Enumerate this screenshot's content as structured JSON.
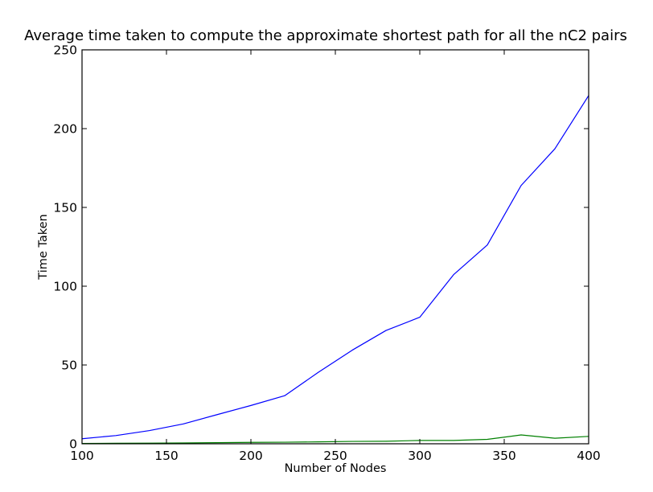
{
  "chart_data": {
    "type": "line",
    "title": "Average time taken to compute the approximate shortest path for all the nC2 pairs",
    "xlabel": "Number of Nodes",
    "ylabel": "Time Taken",
    "xlim": [
      100,
      400
    ],
    "ylim": [
      0,
      250
    ],
    "xticks": [
      "100",
      "150",
      "200",
      "250",
      "300",
      "350",
      "400"
    ],
    "yticks": [
      "0",
      "50",
      "100",
      "150",
      "200",
      "250"
    ],
    "grid": false,
    "x": [
      100,
      120,
      140,
      160,
      180,
      200,
      220,
      240,
      260,
      280,
      300,
      320,
      340,
      360,
      380,
      400
    ],
    "series": [
      {
        "color": "#0000ff",
        "values": [
          3.2,
          5.2,
          8.4,
          12.6,
          18.5,
          24.3,
          30.5,
          45.4,
          59.4,
          71.9,
          80.3,
          107.3,
          126.2,
          163.9,
          187.2,
          221.0
        ]
      },
      {
        "color": "#008000",
        "values": [
          0.2,
          0.3,
          0.4,
          0.5,
          0.7,
          0.9,
          1.0,
          1.2,
          1.5,
          1.6,
          2.1,
          2.1,
          2.8,
          5.6,
          3.5,
          4.7
        ]
      }
    ]
  }
}
